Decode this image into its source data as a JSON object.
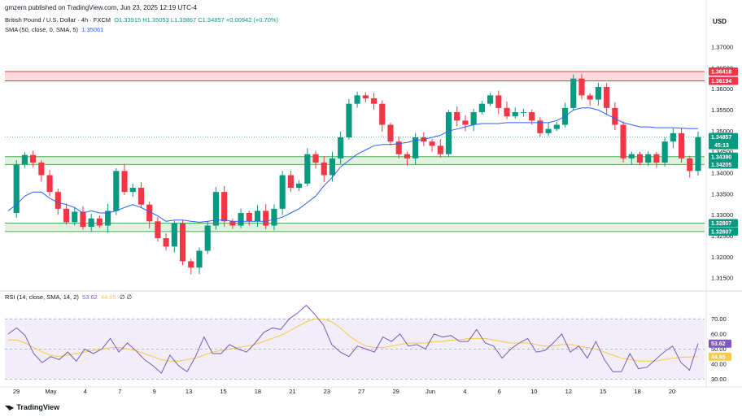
{
  "header": {
    "published_by": "gmzern published on TradingView.com, Jun 23, 2025 12:19 UTC-4",
    "symbol": "British Pound / U.S. Dollar · 4h · FXCM",
    "ohlc": "O1.33915  H1.35053  L1.33867  C1.34857  +0.00942 (+0.70%)",
    "ma_label": "SMA (50, close, 0, SMA, 5)",
    "ma_value": "1.35061",
    "rsi_label": "RSI (14, close, SMA, 14, 2)",
    "rsi_value": "53.62",
    "rsi_ma_value": "44.95",
    "rsi_extra": "∅ ∅"
  },
  "currency": "USD",
  "branding": "TradingView",
  "colors": {
    "up": "#089981",
    "down": "#f23645",
    "ma": "#2962ff",
    "rsi": "#7e57c2",
    "rsi_ma": "#f7c948",
    "resistance_zone": "#f23645",
    "support_zone": "#4caf50"
  },
  "chart_data": {
    "type": "candlestick",
    "title": "British Pound / U.S. Dollar · 4h · FXCM",
    "y_ticks": [
      "1.37000",
      "1.36500",
      "1.36000",
      "1.35500",
      "1.35000",
      "1.34500",
      "1.34000",
      "1.33500",
      "1.33000",
      "1.32500",
      "1.32000",
      "1.31500"
    ],
    "y_tick_values": [
      1.37,
      1.365,
      1.36,
      1.355,
      1.35,
      1.345,
      1.34,
      1.335,
      1.33,
      1.325,
      1.32,
      1.315
    ],
    "ylim": [
      1.3125,
      1.3725
    ],
    "x_labels": [
      "29",
      "May",
      "4",
      "7",
      "9",
      "13",
      "15",
      "18",
      "21",
      "23",
      "27",
      "29",
      "Jun",
      "4",
      "6",
      "10",
      "12",
      "15",
      "18",
      "20"
    ],
    "price_levels": [
      {
        "label": "1.36418",
        "value": 1.36418,
        "color": "#f23645"
      },
      {
        "label": "1.36194",
        "value": 1.36194,
        "color": "#f23645"
      },
      {
        "label": "1.34857",
        "value": 1.34857,
        "color": "#089981",
        "sub": "45:13"
      },
      {
        "label": "1.34390",
        "value": 1.3439,
        "color": "#089981"
      },
      {
        "label": "1.34205",
        "value": 1.34205,
        "color": "#089981"
      },
      {
        "label": "1.32807",
        "value": 1.32807,
        "color": "#089981"
      },
      {
        "label": "1.32607",
        "value": 1.32607,
        "color": "#089981"
      }
    ],
    "zones": [
      {
        "name": "resistance",
        "low": 1.36194,
        "high": 1.36418,
        "color": "#f23645"
      },
      {
        "name": "support-upper",
        "low": 1.34205,
        "high": 1.3439,
        "color": "#4caf50"
      },
      {
        "name": "support-lower",
        "low": 1.32607,
        "high": 1.32807,
        "color": "#4caf50"
      }
    ],
    "close_path": [
      1.3305,
      1.342,
      1.3443,
      1.3425,
      1.3395,
      1.3355,
      1.3315,
      1.3283,
      1.3308,
      1.3272,
      1.3292,
      1.3275,
      1.331,
      1.3405,
      1.3355,
      1.3365,
      1.3325,
      1.3285,
      1.3245,
      1.3225,
      1.328,
      1.319,
      1.3175,
      1.3215,
      1.3275,
      1.3355,
      1.3285,
      1.3275,
      1.3305,
      1.3285,
      1.331,
      1.3275,
      1.3315,
      1.3395,
      1.3365,
      1.3375,
      1.3445,
      1.3425,
      1.3395,
      1.3435,
      1.3485,
      1.3565,
      1.3585,
      1.3578,
      1.3565,
      1.3515,
      1.3475,
      1.3445,
      1.3435,
      1.3485,
      1.3475,
      1.3465,
      1.3445,
      1.3545,
      1.3525,
      1.3515,
      1.3545,
      1.3565,
      1.3585,
      1.3555,
      1.3535,
      1.3545,
      1.3545,
      1.3525,
      1.3495,
      1.3505,
      1.3515,
      1.3555,
      1.3625,
      1.3585,
      1.3575,
      1.3605,
      1.3555,
      1.3515,
      1.3435,
      1.3445,
      1.3425,
      1.3445,
      1.3425,
      1.3475,
      1.3495,
      1.3435,
      1.3405,
      1.34857
    ],
    "ma_path": [
      1.331,
      1.3325,
      1.3345,
      1.3355,
      1.3355,
      1.334,
      1.333,
      1.3325,
      1.3318,
      1.3305,
      1.331,
      1.3305,
      1.3305,
      1.331,
      1.3318,
      1.3325,
      1.3318,
      1.3308,
      1.3298,
      1.3285,
      1.3288,
      1.3288,
      1.3285,
      1.3283,
      1.3285,
      1.3288,
      1.3288,
      1.3285,
      1.3285,
      1.3285,
      1.3285,
      1.3285,
      1.329,
      1.3295,
      1.3305,
      1.3315,
      1.333,
      1.3345,
      1.337,
      1.339,
      1.3415,
      1.343,
      1.3445,
      1.3455,
      1.3465,
      1.3468,
      1.3468,
      1.347,
      1.3473,
      1.3478,
      1.348,
      1.3485,
      1.349,
      1.35,
      1.3505,
      1.351,
      1.3515,
      1.3518,
      1.3518,
      1.3518,
      1.352,
      1.352,
      1.352,
      1.352,
      1.352,
      1.352,
      1.3525,
      1.3535,
      1.355,
      1.3555,
      1.3555,
      1.355,
      1.354,
      1.353,
      1.352,
      1.3515,
      1.351,
      1.351,
      1.3508,
      1.3508,
      1.3508,
      1.3507,
      1.3506,
      1.35061
    ],
    "rsi_ticks": [
      "70.00",
      "60.00",
      "50.00",
      "40.00",
      "30.00"
    ],
    "rsi_tick_values": [
      70,
      60,
      50,
      40,
      30
    ],
    "rsi_band": [
      30,
      70
    ],
    "rsi_ylim": [
      26,
      82
    ],
    "rsi_path": [
      60,
      64,
      59,
      47,
      41,
      45,
      43,
      48,
      42,
      50,
      47,
      50,
      57,
      48,
      54,
      49,
      43,
      39,
      34,
      46,
      39,
      35,
      45,
      58,
      47,
      47,
      53,
      50,
      48,
      54,
      61,
      64,
      63,
      70,
      74,
      79,
      73,
      66,
      53,
      48,
      45,
      52,
      50,
      48,
      58,
      55,
      60,
      52,
      53,
      50,
      60,
      58,
      59,
      55,
      55,
      63,
      54,
      52,
      44,
      50,
      54,
      57,
      48,
      49,
      54,
      60,
      48,
      52,
      44,
      55,
      43,
      35,
      35,
      47,
      37,
      38,
      43,
      48,
      52,
      41,
      36,
      53.62
    ],
    "rsi_ma_path": [
      56,
      56,
      54,
      51,
      48,
      46,
      45,
      46,
      47,
      48,
      49,
      50,
      51,
      51,
      50,
      49,
      47,
      45,
      43,
      42,
      42,
      43,
      44,
      46,
      48,
      49,
      50,
      51,
      52,
      53,
      55,
      57,
      59,
      62,
      65,
      68,
      70,
      70,
      68,
      64,
      59,
      55,
      52,
      51,
      51,
      52,
      53,
      54,
      54,
      54,
      55,
      55,
      56,
      56,
      57,
      57,
      57,
      56,
      55,
      54,
      54,
      54,
      53,
      52,
      52,
      53,
      53,
      52,
      51,
      50,
      48,
      46,
      44,
      43,
      42,
      42,
      42,
      43,
      44,
      44.5,
      44.8,
      44.95
    ]
  }
}
